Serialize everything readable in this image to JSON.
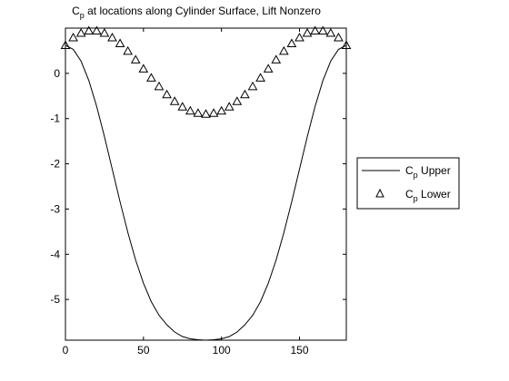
{
  "chart_data": {
    "type": "line",
    "title": {
      "main": "C",
      "sub": "p",
      "rest": " at locations along Cylinder Surface, Lift Nonzero"
    },
    "xlabel": "",
    "ylabel": "",
    "xlim": [
      0,
      180
    ],
    "ylim": [
      -5.9,
      1.0
    ],
    "xticks": [
      0,
      50,
      100,
      150
    ],
    "yticks": [
      0,
      -1,
      -2,
      -3,
      -4,
      -5
    ],
    "grid": false,
    "legend_position": "right",
    "series": [
      {
        "name_main": "C",
        "name_sub": "p",
        "name_rest": " Upper",
        "style": "solid-line",
        "x": [
          0,
          5,
          10,
          15,
          20,
          25,
          30,
          35,
          40,
          45,
          50,
          55,
          60,
          65,
          70,
          75,
          80,
          85,
          90,
          95,
          100,
          105,
          110,
          115,
          120,
          125,
          130,
          135,
          140,
          145,
          150,
          155,
          160,
          165,
          170,
          175,
          180
        ],
        "y": [
          0.62,
          0.53,
          0.27,
          -0.16,
          -0.73,
          -1.4,
          -2.12,
          -2.84,
          -3.52,
          -4.13,
          -4.64,
          -5.05,
          -5.35,
          -5.56,
          -5.72,
          -5.82,
          -5.87,
          -5.89,
          -5.9,
          -5.89,
          -5.87,
          -5.82,
          -5.72,
          -5.56,
          -5.35,
          -5.05,
          -4.64,
          -4.13,
          -3.52,
          -2.84,
          -2.12,
          -1.4,
          -0.73,
          -0.16,
          0.27,
          0.53,
          0.62
        ]
      },
      {
        "name_main": "C",
        "name_sub": "p",
        "name_rest": " Lower",
        "style": "triangle-markers",
        "x": [
          0,
          5,
          10,
          15,
          20,
          25,
          30,
          35,
          40,
          45,
          50,
          55,
          60,
          65,
          70,
          75,
          80,
          85,
          90,
          95,
          100,
          105,
          110,
          115,
          120,
          125,
          130,
          135,
          140,
          145,
          150,
          155,
          160,
          165,
          170,
          175,
          180
        ],
        "y": [
          0.62,
          0.79,
          0.89,
          0.94,
          0.94,
          0.89,
          0.79,
          0.66,
          0.49,
          0.3,
          0.1,
          -0.1,
          -0.29,
          -0.47,
          -0.62,
          -0.74,
          -0.83,
          -0.88,
          -0.9,
          -0.88,
          -0.83,
          -0.74,
          -0.62,
          -0.47,
          -0.29,
          -0.1,
          0.1,
          0.3,
          0.49,
          0.66,
          0.79,
          0.89,
          0.94,
          0.94,
          0.89,
          0.79,
          0.62
        ]
      }
    ]
  }
}
